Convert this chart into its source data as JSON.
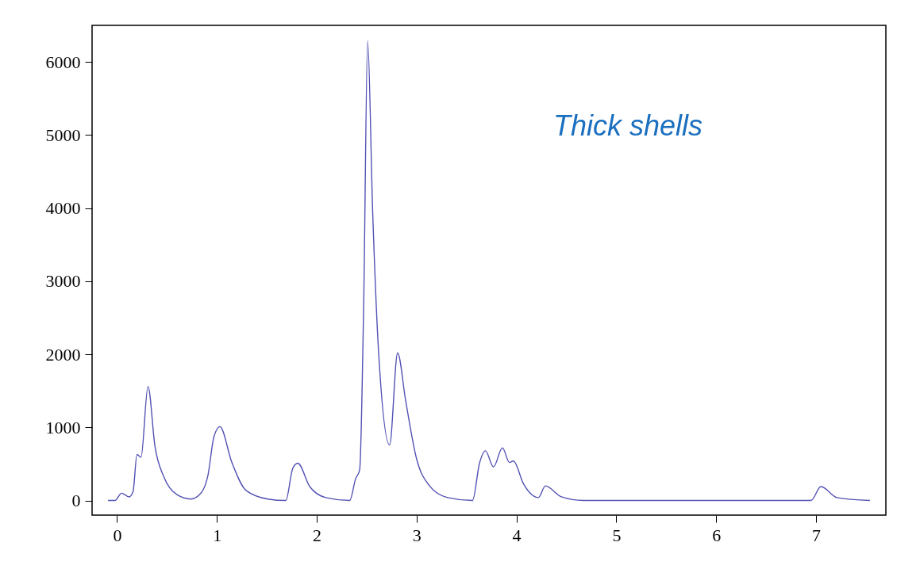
{
  "chart_data": {
    "type": "line",
    "annotations": [
      "Thick shells"
    ],
    "x": [
      -0.09,
      -0.02,
      0.045,
      0.12,
      0.16,
      0.2,
      0.24,
      0.31,
      0.38,
      0.47,
      0.6,
      0.74,
      0.84,
      0.91,
      0.97,
      1.03,
      1.15,
      1.29,
      1.51,
      1.69,
      1.76,
      1.81,
      1.93,
      2.09,
      2.33,
      2.39,
      2.43,
      2.47,
      2.51,
      2.56,
      2.62,
      2.73,
      2.81,
      2.89,
      3.0,
      3.13,
      3.31,
      3.56,
      3.63,
      3.69,
      3.77,
      3.86,
      3.93,
      3.97,
      4.07,
      4.22,
      4.29,
      4.45,
      4.67,
      6.95,
      7.05,
      7.21,
      7.54
    ],
    "series": [
      {
        "color": "#5252b4",
        "values": [
          0,
          0,
          100,
          50,
          120,
          630,
          590,
          1560,
          740,
          320,
          80,
          20,
          100,
          340,
          870,
          1010,
          520,
          140,
          20,
          0,
          440,
          510,
          190,
          40,
          0,
          300,
          420,
          2670,
          6290,
          3960,
          2020,
          760,
          2020,
          1370,
          570,
          200,
          40,
          0,
          510,
          680,
          460,
          720,
          520,
          540,
          230,
          40,
          200,
          50,
          0,
          0,
          190,
          40,
          0
        ]
      }
    ],
    "xlim": [
      -0.25,
      7.7
    ],
    "ylim": [
      -200,
      6500
    ],
    "xticks": [
      0,
      1,
      2,
      3,
      4,
      5,
      6,
      7
    ],
    "yticks": [
      0,
      1000,
      2000,
      3000,
      4000,
      5000,
      6000
    ],
    "grid": false,
    "marker": "none",
    "line_style": "solid"
  }
}
